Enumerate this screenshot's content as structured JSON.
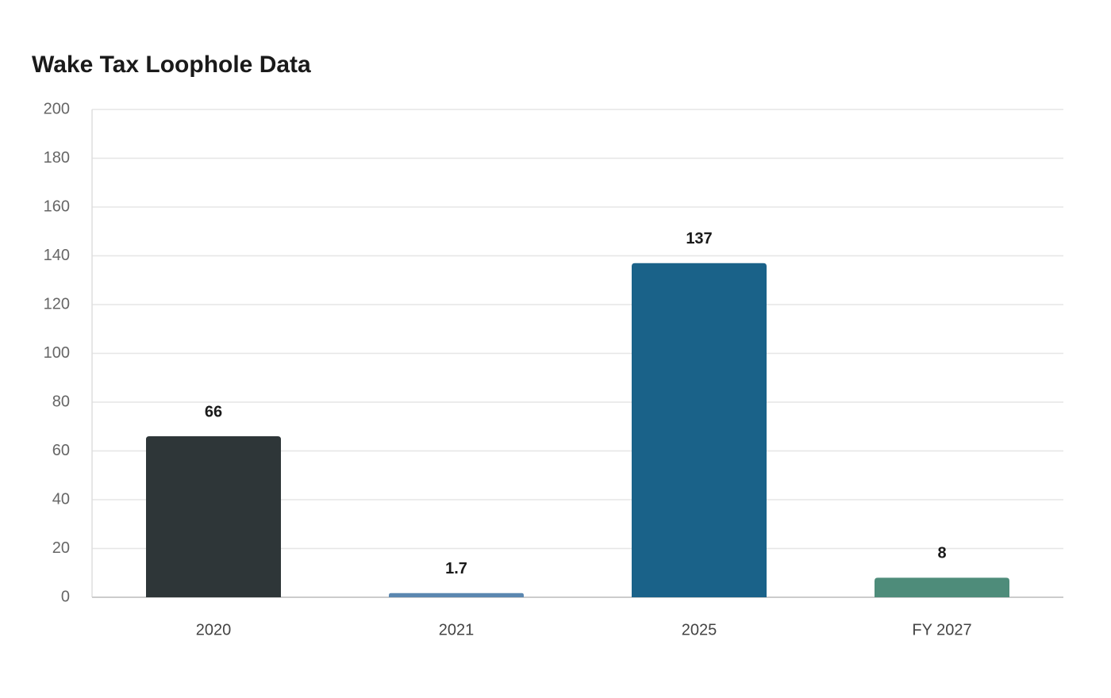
{
  "chart_data": {
    "type": "bar",
    "title": "Wake Tax Loophole Data",
    "categories": [
      "2020",
      "2021",
      "2025",
      "FY 2027"
    ],
    "values": [
      66,
      1.7,
      137,
      8
    ],
    "colors": [
      "#2e3638",
      "#5b87b0",
      "#1a6289",
      "#4e8c7a"
    ],
    "ylim": [
      0,
      200
    ],
    "yticks": [
      0,
      20,
      40,
      60,
      80,
      100,
      120,
      140,
      160,
      180,
      200
    ],
    "grid": true
  }
}
